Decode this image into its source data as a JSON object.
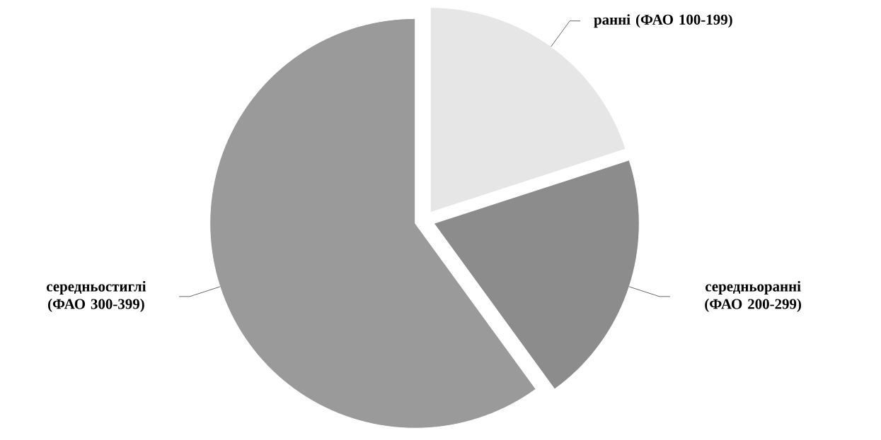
{
  "chart_data": {
    "type": "pie",
    "categories": [
      "ранні (ФАО 100-199)",
      "середньоранні (ФАО 200-299)",
      "середньостиглі (ФАО 300-399)"
    ],
    "values": [
      20,
      20,
      60
    ],
    "colors": [
      "#e6e6e6",
      "#8c8c8c",
      "#9a9a9a"
    ]
  }
}
